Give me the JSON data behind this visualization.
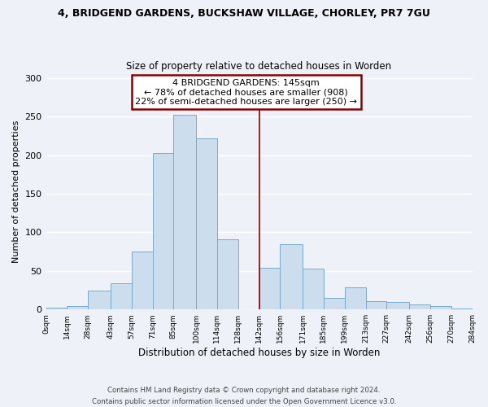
{
  "title": "4, BRIDGEND GARDENS, BUCKSHAW VILLAGE, CHORLEY, PR7 7GU",
  "subtitle": "Size of property relative to detached houses in Worden",
  "xlabel": "Distribution of detached houses by size in Worden",
  "ylabel": "Number of detached properties",
  "bar_color": "#ccdded",
  "bar_edge_color": "#7aaac8",
  "background_color": "#eef2f8",
  "grid_color": "#ffffff",
  "bins": [
    0,
    14,
    28,
    43,
    57,
    71,
    85,
    100,
    114,
    128,
    142,
    156,
    171,
    185,
    199,
    213,
    227,
    242,
    256,
    270,
    284
  ],
  "counts": [
    2,
    4,
    25,
    34,
    75,
    203,
    252,
    222,
    91,
    0,
    54,
    85,
    53,
    15,
    29,
    11,
    10,
    7,
    4,
    1
  ],
  "tick_labels": [
    "0sqm",
    "14sqm",
    "28sqm",
    "43sqm",
    "57sqm",
    "71sqm",
    "85sqm",
    "100sqm",
    "114sqm",
    "128sqm",
    "142sqm",
    "156sqm",
    "171sqm",
    "185sqm",
    "199sqm",
    "213sqm",
    "227sqm",
    "242sqm",
    "256sqm",
    "270sqm",
    "284sqm"
  ],
  "vline_x": 142,
  "vline_color": "#8b0000",
  "annotation_line1": "4 BRIDGEND GARDENS: 145sqm",
  "annotation_line2": "← 78% of detached houses are smaller (908)",
  "annotation_line3": "22% of semi-detached houses are larger (250) →",
  "annotation_box_edge_color": "#8b0000",
  "annotation_box_face_color": "#ffffff",
  "footer_line1": "Contains HM Land Registry data © Crown copyright and database right 2024.",
  "footer_line2": "Contains public sector information licensed under the Open Government Licence v3.0.",
  "ylim": [
    0,
    305
  ],
  "yticks": [
    0,
    50,
    100,
    150,
    200,
    250,
    300
  ]
}
